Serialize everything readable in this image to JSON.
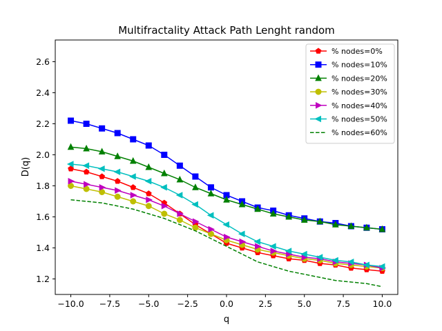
{
  "chart_data": {
    "type": "line",
    "title": "Multifractality Attack Path Lenght random",
    "xlabel": "q",
    "ylabel": "D(q)",
    "xlim": [
      -11,
      11
    ],
    "ylim": [
      1.1,
      2.74
    ],
    "xticks": [
      -10.0,
      -7.5,
      -5.0,
      -2.5,
      0.0,
      2.5,
      5.0,
      7.5,
      10.0
    ],
    "xtick_labels": [
      "−10.0",
      "−7.5",
      "−5.0",
      "−2.5",
      "0.0",
      "2.5",
      "5.0",
      "7.5",
      "10.0"
    ],
    "yticks": [
      1.2,
      1.4,
      1.6,
      1.8,
      2.0,
      2.2,
      2.4,
      2.6
    ],
    "ytick_labels": [
      "1.2",
      "1.4",
      "1.6",
      "1.8",
      "2.0",
      "2.2",
      "2.4",
      "2.6"
    ],
    "grid": false,
    "legend_position": "top-right",
    "x": [
      -10,
      -9,
      -8,
      -7,
      -6,
      -5,
      -4,
      -3,
      -2,
      -1,
      0,
      1,
      2,
      3,
      4,
      5,
      6,
      7,
      8,
      9,
      10
    ],
    "series": [
      {
        "name": "% nodes=0%",
        "color": "#ff0000",
        "marker": "pentagon",
        "dashed": false,
        "values": [
          1.91,
          1.89,
          1.86,
          1.83,
          1.79,
          1.75,
          1.69,
          1.62,
          1.55,
          1.49,
          1.43,
          1.4,
          1.37,
          1.35,
          1.33,
          1.32,
          1.3,
          1.29,
          1.27,
          1.26,
          1.25
        ]
      },
      {
        "name": "% nodes=10%",
        "color": "#0000ff",
        "marker": "square",
        "dashed": false,
        "values": [
          2.22,
          2.2,
          2.17,
          2.14,
          2.1,
          2.06,
          2.0,
          1.93,
          1.86,
          1.79,
          1.74,
          1.7,
          1.66,
          1.64,
          1.61,
          1.59,
          1.57,
          1.56,
          1.54,
          1.53,
          1.52
        ]
      },
      {
        "name": "% nodes=20%",
        "color": "#008000",
        "marker": "triangle-up",
        "dashed": false,
        "values": [
          2.05,
          2.04,
          2.02,
          1.99,
          1.96,
          1.92,
          1.88,
          1.84,
          1.79,
          1.75,
          1.71,
          1.68,
          1.65,
          1.62,
          1.6,
          1.58,
          1.57,
          1.55,
          1.54,
          1.53,
          1.52
        ]
      },
      {
        "name": "% nodes=30%",
        "color": "#bfbf00",
        "marker": "circle",
        "dashed": false,
        "values": [
          1.8,
          1.78,
          1.76,
          1.73,
          1.7,
          1.67,
          1.62,
          1.58,
          1.53,
          1.49,
          1.45,
          1.42,
          1.39,
          1.37,
          1.35,
          1.33,
          1.32,
          1.3,
          1.29,
          1.28,
          1.27
        ]
      },
      {
        "name": "% nodes=40%",
        "color": "#bf00bf",
        "marker": "triangle-right",
        "dashed": false,
        "values": [
          1.83,
          1.81,
          1.79,
          1.77,
          1.74,
          1.71,
          1.67,
          1.62,
          1.57,
          1.52,
          1.47,
          1.44,
          1.41,
          1.38,
          1.36,
          1.34,
          1.33,
          1.31,
          1.3,
          1.29,
          1.27
        ]
      },
      {
        "name": "% nodes=50%",
        "color": "#00bfbf",
        "marker": "triangle-left",
        "dashed": false,
        "values": [
          1.94,
          1.93,
          1.91,
          1.89,
          1.86,
          1.83,
          1.79,
          1.74,
          1.68,
          1.61,
          1.55,
          1.49,
          1.44,
          1.41,
          1.38,
          1.36,
          1.34,
          1.32,
          1.31,
          1.29,
          1.28
        ]
      },
      {
        "name": "% nodes=60%",
        "color": "#008000",
        "marker": "none",
        "dashed": true,
        "values": [
          1.71,
          1.7,
          1.69,
          1.67,
          1.65,
          1.62,
          1.59,
          1.55,
          1.51,
          1.46,
          1.41,
          1.36,
          1.31,
          1.28,
          1.25,
          1.23,
          1.21,
          1.19,
          1.18,
          1.17,
          1.15
        ]
      }
    ]
  }
}
